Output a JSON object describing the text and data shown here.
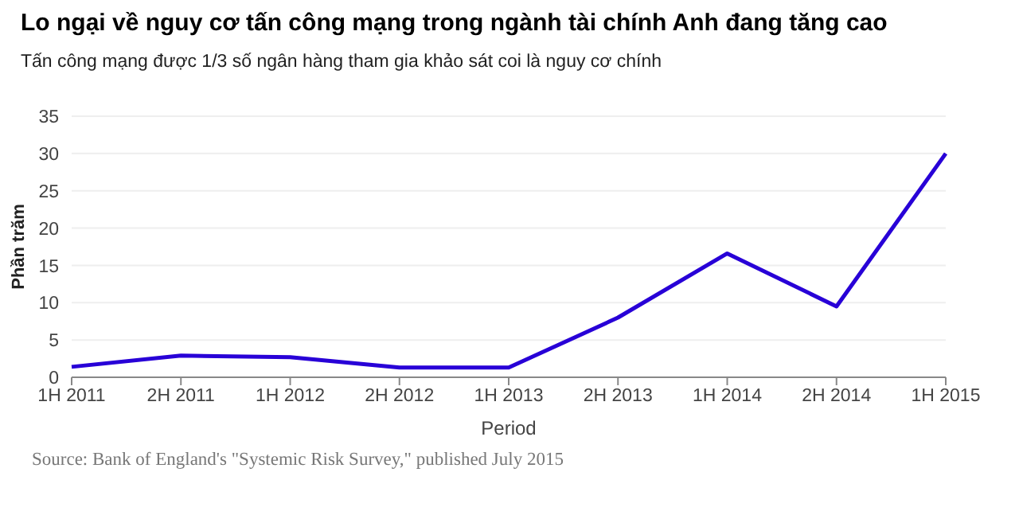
{
  "chart_data": {
    "type": "line",
    "title": "Lo ngại về nguy cơ tấn công mạng trong ngành tài chính Anh đang tăng cao",
    "subtitle": "Tấn công mạng được 1/3 số ngân hàng tham gia khảo sát coi là nguy cơ chính",
    "xlabel": "Period",
    "ylabel": "Phần trăm",
    "categories": [
      "1H 2011",
      "2H 2011",
      "1H 2012",
      "2H 2012",
      "1H 2013",
      "2H 2013",
      "1H 2014",
      "2H 2014",
      "1H 2015"
    ],
    "series": [
      {
        "color": "#2800d7",
        "values": [
          1.4,
          2.9,
          2.7,
          1.3,
          1.3,
          8,
          16.6,
          9.5,
          30
        ]
      }
    ],
    "ylim": [
      0,
      35
    ],
    "yticks": [
      0,
      5,
      10,
      15,
      20,
      25,
      30,
      35
    ],
    "grid": "y",
    "marker": "none",
    "line_style": "solid",
    "annotations": [
      "Source: Bank of England's \"Systemic Risk Survey,\" published July 2015"
    ]
  }
}
